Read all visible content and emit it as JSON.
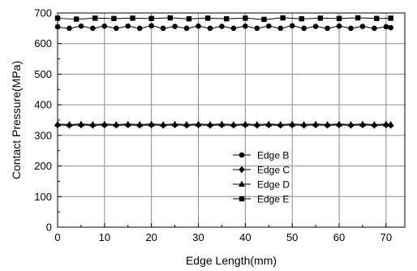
{
  "chart_data": {
    "type": "line",
    "title": "",
    "xlabel": "Edge Length(mm)",
    "ylabel": "Contact Pressure(MPa)",
    "xlim": [
      0,
      74
    ],
    "ylim": [
      0,
      700
    ],
    "xticks": [
      0,
      10,
      20,
      30,
      40,
      50,
      60,
      70
    ],
    "yticks": [
      0,
      100,
      200,
      300,
      400,
      500,
      600,
      700
    ],
    "grid": true,
    "legend_position": "bottom-right",
    "series": [
      {
        "name": "Edge B",
        "marker": "circle",
        "color": "#000000",
        "x": [
          0,
          2.5,
          5,
          7.5,
          10,
          12.5,
          15,
          17.5,
          20,
          22.5,
          25,
          27.5,
          30,
          32.5,
          35,
          37.5,
          40,
          42.5,
          45,
          47.5,
          50,
          52.5,
          55,
          57.5,
          60,
          62.5,
          65,
          67.5,
          70,
          71
        ],
        "y": [
          655,
          650,
          657,
          650,
          657,
          650,
          657,
          650,
          658,
          650,
          656,
          650,
          657,
          650,
          656,
          650,
          657,
          650,
          657,
          650,
          658,
          650,
          656,
          650,
          657,
          650,
          656,
          650,
          655,
          652
        ]
      },
      {
        "name": "Edge C",
        "marker": "diamond",
        "color": "#000000",
        "x": [
          0,
          2.5,
          5,
          7.5,
          10,
          12.5,
          15,
          17.5,
          20,
          22.5,
          25,
          27.5,
          30,
          32.5,
          35,
          37.5,
          40,
          42.5,
          45,
          47.5,
          50,
          52.5,
          55,
          57.5,
          60,
          62.5,
          65,
          67.5,
          70,
          71
        ],
        "y": [
          334,
          333,
          334,
          333,
          334,
          333,
          334,
          333,
          334,
          333,
          334,
          333,
          334,
          333,
          334,
          333,
          334,
          333,
          334,
          333,
          334,
          333,
          334,
          333,
          334,
          333,
          334,
          333,
          334,
          333
        ]
      },
      {
        "name": "Edge D",
        "marker": "triangle",
        "color": "#000000",
        "x": [
          0,
          2.5,
          5,
          7.5,
          10,
          12.5,
          15,
          17.5,
          20,
          22.5,
          25,
          27.5,
          30,
          32.5,
          35,
          37.5,
          40,
          42.5,
          45,
          47.5,
          50,
          52.5,
          55,
          57.5,
          60,
          62.5,
          65,
          67.5,
          70,
          71
        ],
        "y": [
          337,
          336,
          337,
          336,
          337,
          336,
          337,
          336,
          337,
          336,
          337,
          336,
          337,
          336,
          337,
          336,
          337,
          336,
          337,
          336,
          337,
          336,
          337,
          336,
          337,
          336,
          337,
          336,
          337,
          336
        ]
      },
      {
        "name": "Edge E",
        "marker": "square",
        "color": "#000000",
        "x": [
          0,
          4,
          8,
          12,
          16,
          20,
          24,
          28,
          32,
          36,
          40,
          44,
          48,
          52,
          56,
          60,
          64,
          68,
          71
        ],
        "y": [
          683,
          680,
          683,
          682,
          683,
          682,
          684,
          681,
          683,
          681,
          683,
          679,
          684,
          681,
          683,
          682,
          684,
          682,
          683
        ]
      }
    ]
  }
}
